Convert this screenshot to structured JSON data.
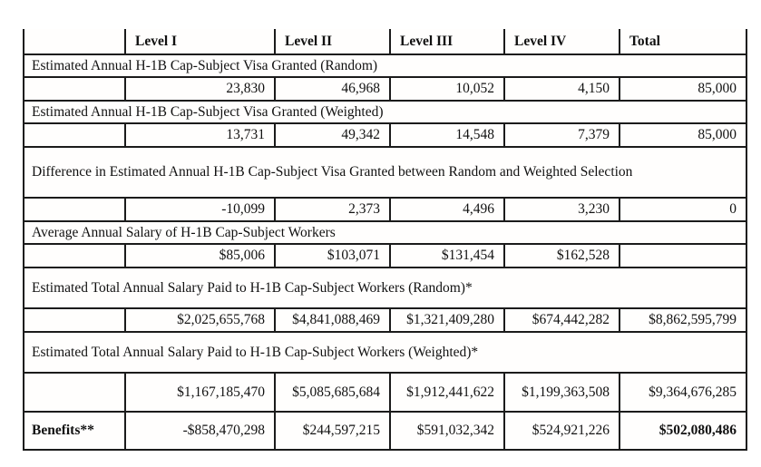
{
  "table": {
    "columns": [
      "",
      "Level I",
      "Level II",
      "Level III",
      "Level IV",
      "Total"
    ],
    "rows": [
      {
        "type": "section",
        "label": "Estimated Annual H-1B Cap-Subject Visa Granted (Random)"
      },
      {
        "type": "values",
        "label": "",
        "values": [
          "23,830",
          "46,968",
          "10,052",
          "4,150",
          "85,000"
        ]
      },
      {
        "type": "section",
        "label": "Estimated Annual H-1B Cap-Subject Visa Granted (Weighted)"
      },
      {
        "type": "values",
        "label": "",
        "values": [
          "13,731",
          "49,342",
          "14,548",
          "7,379",
          "85,000"
        ]
      },
      {
        "type": "section",
        "label": "Difference in Estimated Annual H-1B Cap-Subject Visa Granted between Random and Weighted Selection"
      },
      {
        "type": "values",
        "label": "",
        "values": [
          "-10,099",
          "2,373",
          "4,496",
          "3,230",
          "0"
        ]
      },
      {
        "type": "section",
        "label": "Average Annual Salary of H-1B Cap-Subject Workers"
      },
      {
        "type": "values",
        "label": "",
        "values": [
          "$85,006",
          "$103,071",
          "$131,454",
          "$162,528",
          ""
        ]
      },
      {
        "type": "section",
        "label": "Estimated Total Annual Salary Paid to H-1B Cap-Subject Workers (Random)*"
      },
      {
        "type": "values",
        "label": "",
        "values": [
          "$2,025,655,768",
          "$4,841,088,469",
          "$1,321,409,280",
          "$674,442,282",
          "$8,862,595,799"
        ]
      },
      {
        "type": "section",
        "label": "Estimated Total Annual Salary Paid to H-1B Cap-Subject Workers (Weighted)*"
      },
      {
        "type": "values",
        "label": "",
        "values": [
          "$1,167,185,470",
          "$5,085,685,684",
          "$1,912,441,622",
          "$1,199,363,508",
          "$9,364,676,285"
        ]
      },
      {
        "type": "values",
        "label": "Benefits**",
        "values": [
          "-$858,470,298",
          "$244,597,215",
          "$591,032,342",
          "$524,921,226",
          "$502,080,486"
        ]
      }
    ]
  }
}
